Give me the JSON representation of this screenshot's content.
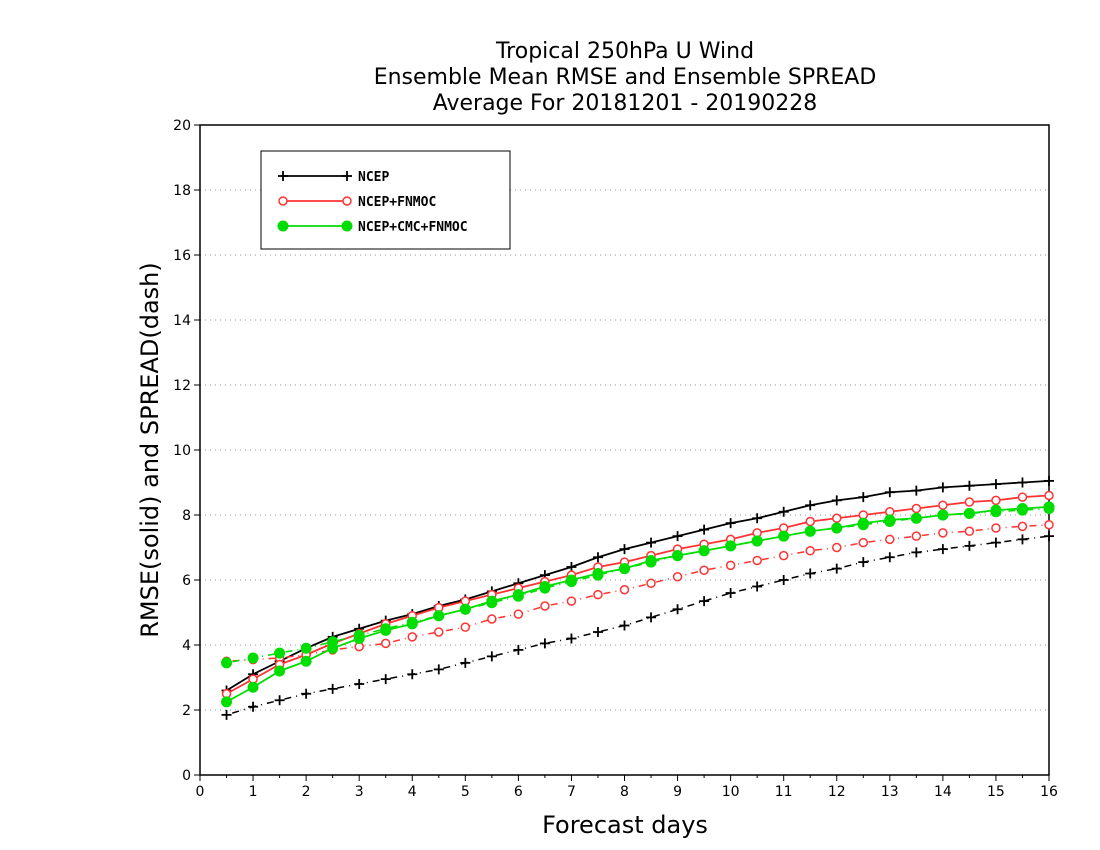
{
  "chart_data": {
    "type": "line",
    "title": [
      "Tropical 250hPa U Wind",
      "Ensemble Mean RMSE and Ensemble SPREAD",
      "Average For 20181201 - 20190228"
    ],
    "xlabel": "Forecast days",
    "ylabel": "RMSE(solid) and SPREAD(dash)",
    "xlim": [
      0,
      16
    ],
    "ylim": [
      0,
      20
    ],
    "xticks": [
      0,
      1,
      2,
      3,
      4,
      5,
      6,
      7,
      8,
      9,
      10,
      11,
      12,
      13,
      14,
      15,
      16
    ],
    "yticks": [
      0,
      2,
      4,
      6,
      8,
      10,
      12,
      14,
      16,
      18,
      20
    ],
    "grid": "horizontal dotted",
    "legend_placement": "top-left",
    "x": [
      0.5,
      1,
      1.5,
      2,
      2.5,
      3,
      3.5,
      4,
      4.5,
      5,
      5.5,
      6,
      6.5,
      7,
      7.5,
      8,
      8.5,
      9,
      9.5,
      10,
      10.5,
      11,
      11.5,
      12,
      12.5,
      13,
      13.5,
      14,
      14.5,
      15,
      15.5,
      16
    ],
    "series": [
      {
        "name": "NCEP",
        "color": "#000000",
        "marker": "plus",
        "rmse": [
          2.6,
          3.1,
          3.5,
          3.9,
          4.25,
          4.5,
          4.75,
          4.95,
          5.2,
          5.4,
          5.65,
          5.9,
          6.15,
          6.4,
          6.7,
          6.95,
          7.15,
          7.35,
          7.55,
          7.75,
          7.9,
          8.1,
          8.3,
          8.45,
          8.55,
          8.7,
          8.75,
          8.85,
          8.9,
          8.95,
          9.0,
          9.05
        ],
        "spread": [
          1.85,
          2.1,
          2.3,
          2.5,
          2.65,
          2.8,
          2.95,
          3.1,
          3.25,
          3.45,
          3.65,
          3.85,
          4.05,
          4.2,
          4.4,
          4.6,
          4.85,
          5.1,
          5.35,
          5.6,
          5.8,
          6.0,
          6.2,
          6.35,
          6.55,
          6.7,
          6.85,
          6.95,
          7.05,
          7.15,
          7.25,
          7.35
        ]
      },
      {
        "name": "NCEP+FNMOC",
        "color": "#ff3333",
        "marker": "open-circle",
        "rmse": [
          2.5,
          2.95,
          3.4,
          3.7,
          4.05,
          4.35,
          4.65,
          4.9,
          5.15,
          5.35,
          5.55,
          5.75,
          5.95,
          6.15,
          6.4,
          6.55,
          6.75,
          6.95,
          7.1,
          7.25,
          7.45,
          7.6,
          7.8,
          7.9,
          8.0,
          8.1,
          8.2,
          8.3,
          8.4,
          8.45,
          8.55,
          8.6
        ],
        "spread": [
          3.5,
          3.55,
          3.6,
          3.7,
          3.85,
          3.95,
          4.05,
          4.25,
          4.4,
          4.55,
          4.8,
          4.95,
          5.2,
          5.35,
          5.55,
          5.7,
          5.9,
          6.1,
          6.3,
          6.45,
          6.6,
          6.75,
          6.9,
          7.0,
          7.15,
          7.25,
          7.35,
          7.45,
          7.5,
          7.6,
          7.65,
          7.7
        ]
      },
      {
        "name": "NCEP+CMC+FNMOC",
        "color": "#00dd00",
        "marker": "filled-circle",
        "rmse": [
          2.25,
          2.7,
          3.2,
          3.5,
          3.9,
          4.2,
          4.45,
          4.65,
          4.9,
          5.1,
          5.35,
          5.55,
          5.8,
          6.0,
          6.2,
          6.35,
          6.6,
          6.75,
          6.9,
          7.05,
          7.2,
          7.35,
          7.5,
          7.6,
          7.75,
          7.85,
          7.9,
          8.0,
          8.05,
          8.15,
          8.2,
          8.25
        ],
        "spread": [
          3.45,
          3.6,
          3.75,
          3.9,
          4.1,
          4.3,
          4.5,
          4.7,
          4.9,
          5.1,
          5.3,
          5.5,
          5.75,
          5.95,
          6.15,
          6.35,
          6.55,
          6.75,
          6.9,
          7.05,
          7.2,
          7.35,
          7.5,
          7.6,
          7.7,
          7.8,
          7.9,
          8.0,
          8.05,
          8.1,
          8.15,
          8.2
        ]
      }
    ]
  }
}
